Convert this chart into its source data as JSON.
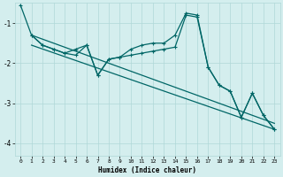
{
  "xlabel": "Humidex (Indice chaleur)",
  "bg_color": "#d4eeee",
  "grid_color": "#b0d8d8",
  "line_color": "#006666",
  "xlim": [
    -0.5,
    23.5
  ],
  "ylim": [
    -4.3,
    -0.5
  ],
  "yticks": [
    -4,
    -3,
    -2,
    -1
  ],
  "xticks": [
    0,
    1,
    2,
    3,
    4,
    5,
    6,
    7,
    8,
    9,
    10,
    11,
    12,
    13,
    14,
    15,
    16,
    17,
    18,
    19,
    20,
    21,
    22,
    23
  ],
  "series_main": [
    [
      0,
      -0.55
    ],
    [
      1,
      -1.3
    ],
    [
      2,
      -1.55
    ],
    [
      3,
      -1.65
    ],
    [
      4,
      -1.75
    ],
    [
      5,
      -1.65
    ],
    [
      6,
      -1.55
    ],
    [
      7,
      -2.3
    ],
    [
      8,
      -1.9
    ],
    [
      9,
      -1.85
    ],
    [
      10,
      -1.65
    ],
    [
      11,
      -1.55
    ],
    [
      12,
      -1.5
    ],
    [
      13,
      -1.5
    ],
    [
      14,
      -1.3
    ],
    [
      15,
      -0.75
    ],
    [
      16,
      -0.8
    ],
    [
      17,
      -2.1
    ],
    [
      18,
      -2.55
    ],
    [
      19,
      -2.7
    ],
    [
      20,
      -3.35
    ],
    [
      21,
      -2.75
    ],
    [
      22,
      -3.3
    ],
    [
      23,
      -3.65
    ]
  ],
  "series_trend1": [
    [
      1,
      -1.3
    ],
    [
      23,
      -3.5
    ]
  ],
  "series_trend2": [
    [
      1,
      -1.55
    ],
    [
      23,
      -3.65
    ]
  ],
  "series_secondary": [
    [
      1,
      -1.3
    ],
    [
      2,
      -1.55
    ],
    [
      3,
      -1.65
    ],
    [
      4,
      -1.75
    ],
    [
      5,
      -1.8
    ],
    [
      6,
      -1.55
    ],
    [
      7,
      -2.3
    ],
    [
      8,
      -1.9
    ],
    [
      9,
      -1.85
    ],
    [
      10,
      -1.8
    ],
    [
      11,
      -1.75
    ],
    [
      12,
      -1.7
    ],
    [
      13,
      -1.65
    ],
    [
      14,
      -1.6
    ],
    [
      15,
      -0.8
    ],
    [
      16,
      -0.85
    ],
    [
      17,
      -2.1
    ],
    [
      18,
      -2.55
    ],
    [
      19,
      -2.7
    ],
    [
      20,
      -3.35
    ],
    [
      21,
      -2.75
    ],
    [
      22,
      -3.3
    ],
    [
      23,
      -3.65
    ]
  ]
}
